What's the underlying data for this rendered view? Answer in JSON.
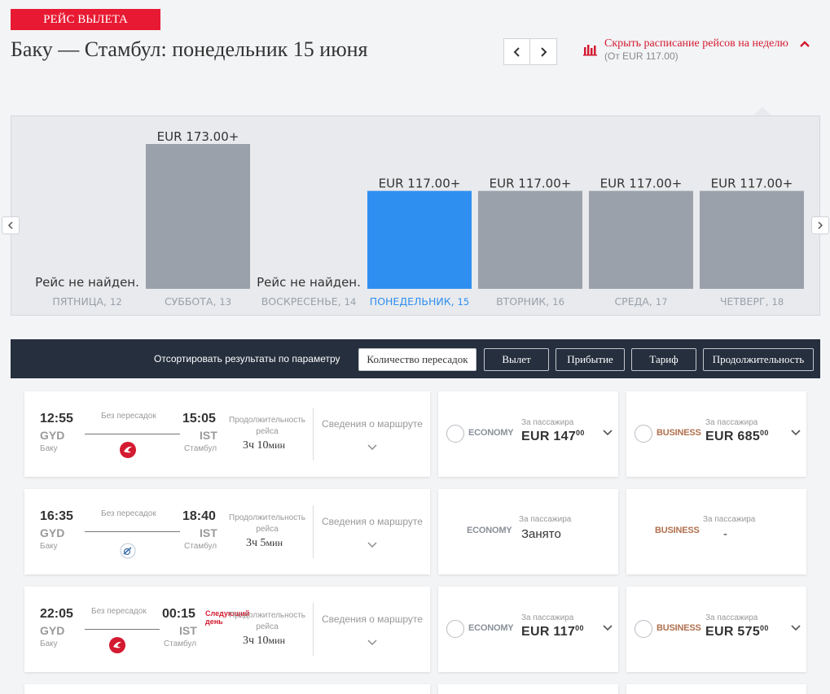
{
  "header": {
    "badge": "РЕЙС ВЫЛЕТА",
    "title": "Баку — Стамбул: понедельник 15 июня",
    "week_toggle_label": "Скрыть расписание рейсов на неделю",
    "week_toggle_sub": "(От EUR 117.00)"
  },
  "chart_data": {
    "type": "bar",
    "categories": [
      "ПЯТНИЦА, 12",
      "СУББОТА, 13",
      "ВОСКРЕСЕНЬЕ, 14",
      "ПОНЕДЕЛЬНИК, 15",
      "ВТОРНИК, 16",
      "СРЕДА, 17",
      "ЧЕТВЕРГ, 18"
    ],
    "values": [
      null,
      173.0,
      null,
      117.0,
      117.0,
      117.0,
      117.0
    ],
    "value_labels": [
      "",
      "EUR 173.00+",
      "",
      "EUR 117.00+",
      "EUR 117.00+",
      "EUR 117.00+",
      "EUR 117.00+"
    ],
    "missing_label": "Рейс не найден.",
    "selected_index": 3,
    "ylim": [
      0,
      173
    ],
    "colors": {
      "bar": "#9aa1aa",
      "selected": "#2f8ff0",
      "label": "#9aa1aa",
      "selected_label": "#2f8ff0"
    }
  },
  "sort": {
    "label": "Отсортировать результаты по параметру",
    "buttons": [
      "Количество пересадок",
      "Вылет",
      "Прибытие",
      "Тариф",
      "Продолжительность"
    ],
    "active_index": 0
  },
  "flights": [
    {
      "dep_time": "12:55",
      "dep_code": "GYD",
      "dep_city": "Баку",
      "arr_time": "15:05",
      "arr_code": "IST",
      "arr_city": "Стамбул",
      "stops": "Без пересадок",
      "next_day": "",
      "duration_label": "Продолжительность рейса",
      "duration_h": "3",
      "duration_h_unit": "ч",
      "duration_m": "10",
      "duration_m_unit": "мин",
      "details": "Сведения о маршруте",
      "airline_logo": "turkish-airlines-logo",
      "economy": {
        "label": "ECONOMY",
        "per_pax": "За пассажира",
        "price": "EUR 147",
        "cents": "00",
        "available": true
      },
      "business": {
        "label": "BUSINESS",
        "per_pax": "За пассажира",
        "price": "EUR 685",
        "cents": "00",
        "available": true
      }
    },
    {
      "dep_time": "16:35",
      "dep_code": "GYD",
      "dep_city": "Баку",
      "arr_time": "18:40",
      "arr_code": "IST",
      "arr_city": "Стамбул",
      "stops": "Без пересадок",
      "next_day": "",
      "duration_label": "Продолжительность рейса",
      "duration_h": "3",
      "duration_h_unit": "ч",
      "duration_m": "5",
      "duration_m_unit": "мин",
      "details": "Сведения о маршруте",
      "airline_logo": "anadolujet-logo",
      "economy": {
        "label": "ECONOMY",
        "per_pax": "За пассажира",
        "status": "Занято",
        "available": false
      },
      "business": {
        "label": "BUSINESS",
        "per_pax": "За пассажира",
        "status": "-",
        "available": false
      }
    },
    {
      "dep_time": "22:05",
      "dep_code": "GYD",
      "dep_city": "Баку",
      "arr_time": "00:15",
      "arr_code": "IST",
      "arr_city": "Стамбул",
      "stops": "Без пересадок",
      "next_day": "Следующий день",
      "duration_label": "Продолжительность рейса",
      "duration_h": "3",
      "duration_h_unit": "ч",
      "duration_m": "10",
      "duration_m_unit": "мин",
      "details": "Сведения о маршруте",
      "airline_logo": "turkish-airlines-logo",
      "economy": {
        "label": "ECONOMY",
        "per_pax": "За пассажира",
        "price": "EUR 117",
        "cents": "00",
        "available": true
      },
      "business": {
        "label": "BUSINESS",
        "per_pax": "За пассажира",
        "price": "EUR 575",
        "cents": "00",
        "available": true
      }
    }
  ]
}
